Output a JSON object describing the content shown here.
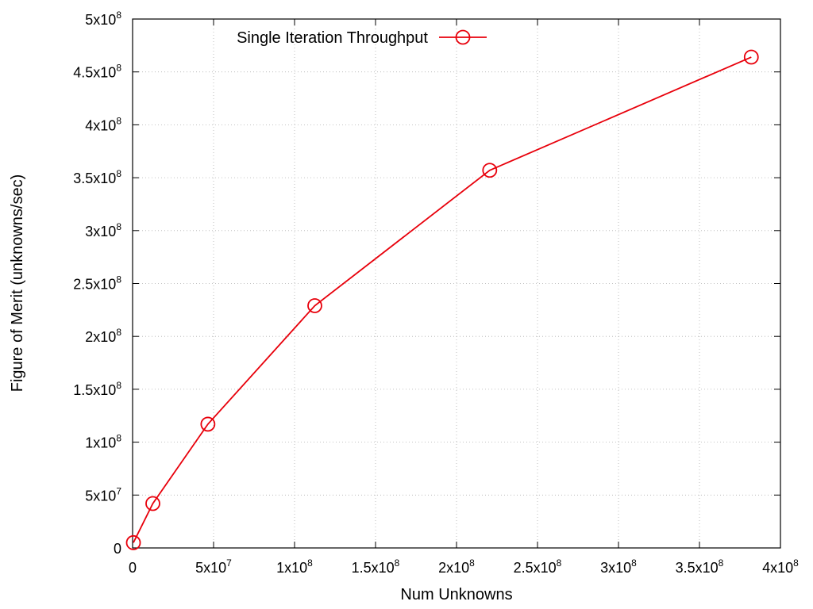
{
  "chart_data": {
    "type": "line",
    "xlabel": "Num Unknowns",
    "ylabel": "Figure of Merit (unknowns/sec)",
    "xlim": [
      0,
      400000000
    ],
    "ylim": [
      0,
      500000000
    ],
    "grid": true,
    "legend_position": "top-left",
    "x_ticks": [
      {
        "value": 0,
        "mantissa": "0",
        "exp": ""
      },
      {
        "value": 50000000,
        "mantissa": "5x10",
        "exp": "7"
      },
      {
        "value": 100000000,
        "mantissa": "1x10",
        "exp": "8"
      },
      {
        "value": 150000000,
        "mantissa": "1.5x10",
        "exp": "8"
      },
      {
        "value": 200000000,
        "mantissa": "2x10",
        "exp": "8"
      },
      {
        "value": 250000000,
        "mantissa": "2.5x10",
        "exp": "8"
      },
      {
        "value": 300000000,
        "mantissa": "3x10",
        "exp": "8"
      },
      {
        "value": 350000000,
        "mantissa": "3.5x10",
        "exp": "8"
      },
      {
        "value": 400000000,
        "mantissa": "4x10",
        "exp": "8"
      }
    ],
    "y_ticks": [
      {
        "value": 0,
        "mantissa": "0",
        "exp": ""
      },
      {
        "value": 50000000,
        "mantissa": "5x10",
        "exp": "7"
      },
      {
        "value": 100000000,
        "mantissa": "1x10",
        "exp": "8"
      },
      {
        "value": 150000000,
        "mantissa": "1.5x10",
        "exp": "8"
      },
      {
        "value": 200000000,
        "mantissa": "2x10",
        "exp": "8"
      },
      {
        "value": 250000000,
        "mantissa": "2.5x10",
        "exp": "8"
      },
      {
        "value": 300000000,
        "mantissa": "3x10",
        "exp": "8"
      },
      {
        "value": 350000000,
        "mantissa": "3.5x10",
        "exp": "8"
      },
      {
        "value": 400000000,
        "mantissa": "4x10",
        "exp": "8"
      },
      {
        "value": 450000000,
        "mantissa": "4.5x10",
        "exp": "8"
      },
      {
        "value": 500000000,
        "mantissa": "5x10",
        "exp": "8"
      }
    ],
    "series": [
      {
        "name": "Single Iteration Throughput",
        "color": "#e8000b",
        "marker": "open-circle",
        "x": [
          500000,
          12500000,
          46500000,
          112500000,
          220500000,
          382000000
        ],
        "y": [
          5000000,
          42000000,
          117000000,
          229000000,
          357000000,
          464000000
        ]
      }
    ]
  }
}
